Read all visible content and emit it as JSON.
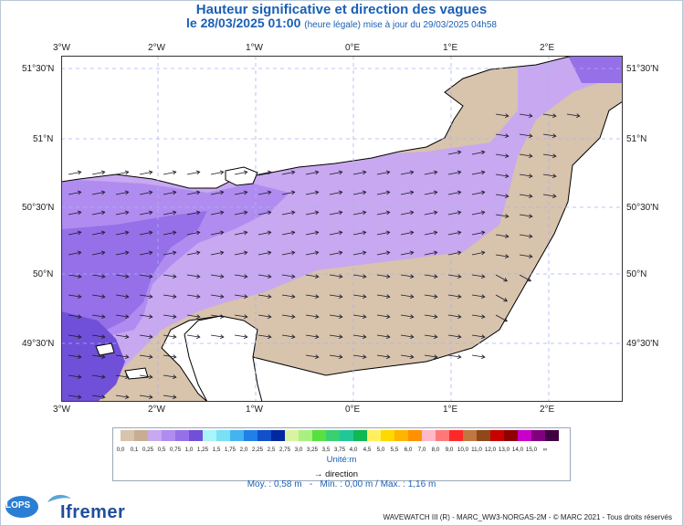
{
  "header": {
    "title": "Hauteur significative et direction des vagues",
    "date_line": "le 28/03/2025 01:00",
    "date_note": "(heure légale) mise à jour du 29/03/2025 04h58"
  },
  "axes": {
    "top_lon": [
      "3°W",
      "2°W",
      "1°W",
      "0°E",
      "1°E",
      "2°E"
    ],
    "bottom_lon": [
      "3°W",
      "2°W",
      "1°W",
      "0°E",
      "1°E",
      "2°E"
    ],
    "left_lat": [
      "51°30'N",
      "51°N",
      "50°30'N",
      "50°N",
      "49°30'N"
    ],
    "right_lat": [
      "51°30'N",
      "51°N",
      "50°30'N",
      "50°N",
      "49°30'N"
    ]
  },
  "legend": {
    "colors": [
      "#d8c3ac",
      "#c8ad94",
      "#c8a8f0",
      "#b08cf0",
      "#9670e8",
      "#7050d8",
      "#a8f4f8",
      "#7ae0f4",
      "#44b4f0",
      "#2080e8",
      "#1050c8",
      "#0028a0",
      "#d8f4a0",
      "#a8f080",
      "#58e040",
      "#38d070",
      "#20c898",
      "#10b850",
      "#fff060",
      "#ffd800",
      "#ffb400",
      "#ff9000",
      "#ffb8c8",
      "#ff7878",
      "#ff2828",
      "#c07840",
      "#904818",
      "#c80000",
      "#900000",
      "#c800c8",
      "#800080",
      "#400040"
    ],
    "labels": [
      "0,0",
      "0,1",
      "0,25",
      "0,5",
      "0,75",
      "1,0",
      "1,25",
      "1,5",
      "1,75",
      "2,0",
      "2,25",
      "2,5",
      "2,75",
      "3,0",
      "3,25",
      "3,5",
      "3,75",
      "4,0",
      "4,5",
      "5,0",
      "5,5",
      "6,0",
      "7,0",
      "8,0",
      "9,0",
      "10,0",
      "11,0",
      "12,0",
      "13,0",
      "14,0",
      "15,0",
      "∞"
    ],
    "unit": "Unité:m",
    "direction_label": "direction"
  },
  "stats": {
    "moy": "Moy. : 0,58 m",
    "min": "Min. : 0,00 m",
    "max": "Max. : 1,16 m"
  },
  "footer": {
    "credits": "WAVEWATCH III (R) - MARC_WW3-NORGAS-2M - © MARC 2021 - Tous droits réservés",
    "logo_lops": "LOPS",
    "logo_ifremer": "Ifremer"
  },
  "map_colors": {
    "land": "#ffffff",
    "coast": "#000000",
    "grid": "#a8b4f0",
    "arrow": "#1a1a2a"
  }
}
